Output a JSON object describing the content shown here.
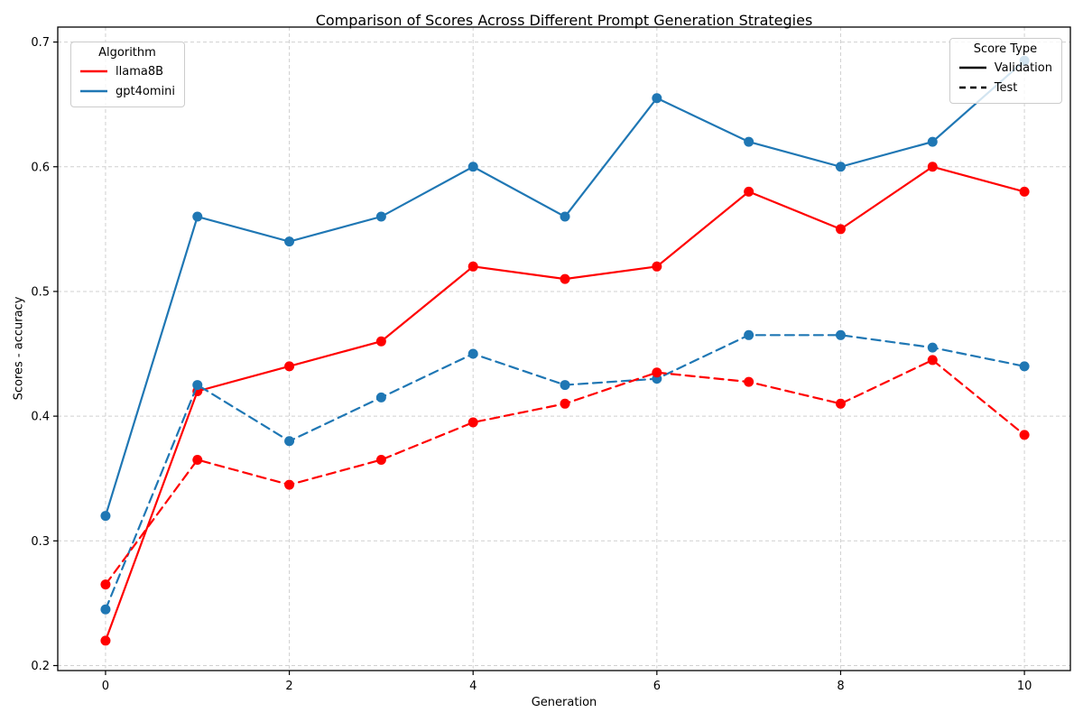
{
  "chart_data": {
    "type": "line",
    "title": "Comparison of Scores Across Different Prompt Generation Strategies",
    "xlabel": "Generation",
    "ylabel": "Scores - accuracy",
    "x": [
      0,
      1,
      2,
      3,
      4,
      5,
      6,
      7,
      8,
      9,
      10
    ],
    "xlim": [
      -0.52,
      10.5
    ],
    "ylim": [
      0.196,
      0.712
    ],
    "xticks": [
      0,
      2,
      4,
      6,
      8,
      10
    ],
    "yticks": [
      0.2,
      0.3,
      0.4,
      0.5,
      0.6,
      0.7
    ],
    "grid": true,
    "grid_color": "#d0d0d0",
    "series": [
      {
        "name": "llama8B Validation",
        "algorithm": "llama8B",
        "score_type": "Validation",
        "color": "#ff0000",
        "dash": "solid",
        "values": [
          0.22,
          0.42,
          0.44,
          0.46,
          0.52,
          0.51,
          0.52,
          0.58,
          0.55,
          0.6,
          0.58
        ]
      },
      {
        "name": "gpt4omini Validation",
        "algorithm": "gpt4omini",
        "score_type": "Validation",
        "color": "#1f77b4",
        "dash": "solid",
        "values": [
          0.32,
          0.56,
          0.54,
          0.56,
          0.6,
          0.56,
          0.655,
          0.62,
          0.6,
          0.62,
          0.685
        ]
      },
      {
        "name": "gpt4omini Test",
        "algorithm": "gpt4omini",
        "score_type": "Test",
        "color": "#1f77b4",
        "dash": "dashed",
        "values": [
          0.245,
          0.425,
          0.38,
          0.415,
          0.45,
          0.425,
          0.43,
          0.465,
          0.465,
          0.455,
          0.44
        ]
      },
      {
        "name": "llama8B Test",
        "algorithm": "llama8B",
        "score_type": "Test",
        "color": "#ff0000",
        "dash": "dashed",
        "values": [
          0.265,
          0.365,
          0.345,
          0.365,
          0.395,
          0.41,
          0.435,
          0.4275,
          0.41,
          0.445,
          0.385
        ]
      }
    ],
    "legends": [
      {
        "title": "Algorithm",
        "position": "upper-left",
        "entries": [
          {
            "label": "llama8B",
            "color": "#ff0000",
            "dash": "solid"
          },
          {
            "label": "gpt4omini",
            "color": "#1f77b4",
            "dash": "solid"
          }
        ]
      },
      {
        "title": "Score Type",
        "position": "upper-right",
        "entries": [
          {
            "label": "Validation",
            "color": "#000000",
            "dash": "solid"
          },
          {
            "label": "Test",
            "color": "#000000",
            "dash": "dashed"
          }
        ]
      }
    ]
  }
}
